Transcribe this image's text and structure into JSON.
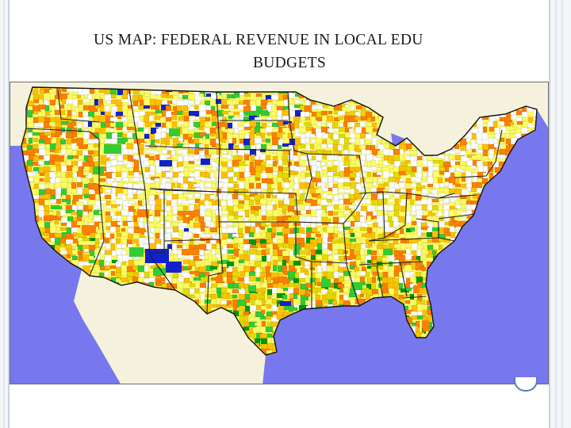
{
  "slide": {
    "title_line1": "US MAP: FEDERAL REVENUE IN LOCAL EDU",
    "title_line2": "BUDGETS"
  },
  "map": {
    "subject": "Contiguous United States school districts",
    "colors": {
      "water": "#7777ee",
      "foreign_land": "#f5f1dc",
      "lowest": "#ffffff",
      "low": "#ffff66",
      "mid_yellow": "#e8d800",
      "mid": "#ffc000",
      "high": "#ff8000",
      "very_high_green": "#33cc33",
      "dark_green": "#009900",
      "max_blue": "#1122cc",
      "borders": "#333333"
    }
  }
}
